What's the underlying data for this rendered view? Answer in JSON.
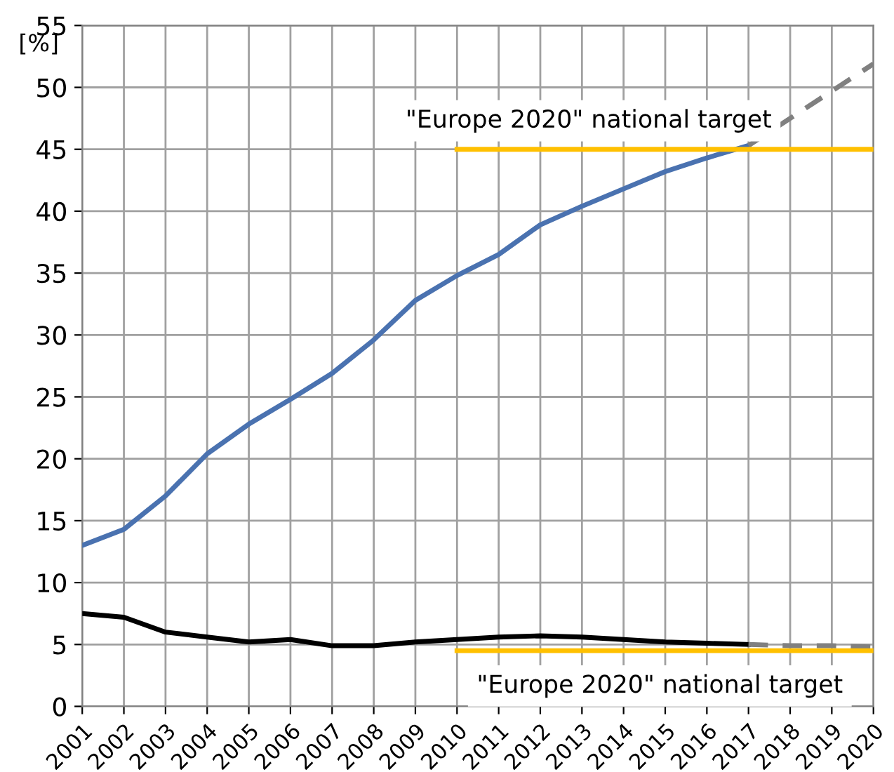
{
  "chart_data": {
    "type": "line",
    "ylabel": "[%]",
    "series": [
      {
        "color": "#4a72b0",
        "x": [
          2001,
          2002,
          2003,
          2004,
          2005,
          2006,
          2007,
          2008,
          2009,
          2010,
          2011,
          2012,
          2013,
          2014,
          2015,
          2016,
          2017
        ],
        "values": [
          13.0,
          14.3,
          17.0,
          20.4,
          22.8,
          24.8,
          26.9,
          29.6,
          32.8,
          34.8,
          36.5,
          38.9,
          40.4,
          41.8,
          43.2,
          44.3,
          45.3
        ]
      },
      {
        "color": "#808080",
        "line_style": "dashed",
        "x": [
          2017,
          2018,
          2019,
          2020
        ],
        "values": [
          45.3,
          47.5,
          49.7,
          51.9
        ]
      },
      {
        "color": "#000000",
        "x": [
          2001,
          2002,
          2003,
          2004,
          2005,
          2006,
          2007,
          2008,
          2009,
          2010,
          2011,
          2012,
          2013,
          2014,
          2015,
          2016,
          2017
        ],
        "values": [
          7.5,
          7.2,
          6.0,
          5.6,
          5.2,
          5.4,
          4.9,
          4.9,
          5.2,
          5.4,
          5.6,
          5.7,
          5.6,
          5.4,
          5.2,
          5.1,
          5.0
        ]
      },
      {
        "color": "#808080",
        "line_style": "dashed",
        "x": [
          2017,
          2018,
          2019,
          2020
        ],
        "values": [
          5.0,
          4.9,
          4.9,
          4.8
        ]
      },
      {
        "color": "#ffc000",
        "x": [
          2010,
          2020
        ],
        "values": [
          45,
          45
        ]
      },
      {
        "color": "#ffc000",
        "x": [
          2010,
          2020
        ],
        "values": [
          4.5,
          4.5
        ]
      }
    ],
    "annotations": [
      "\"Europe 2020\" national target",
      "\"Europe 2020\" national target"
    ],
    "xlim": [
      2001,
      2020
    ],
    "xticks": [
      2001,
      2002,
      2003,
      2004,
      2005,
      2006,
      2007,
      2008,
      2009,
      2010,
      2011,
      2012,
      2013,
      2014,
      2015,
      2016,
      2017,
      2018,
      2019,
      2020
    ],
    "ylim": [
      0,
      55
    ],
    "yticks": [
      0,
      5,
      10,
      15,
      20,
      25,
      30,
      35,
      40,
      45,
      50,
      55
    ],
    "grid": true,
    "legend": false,
    "marker": "none",
    "line_style": "solid"
  }
}
